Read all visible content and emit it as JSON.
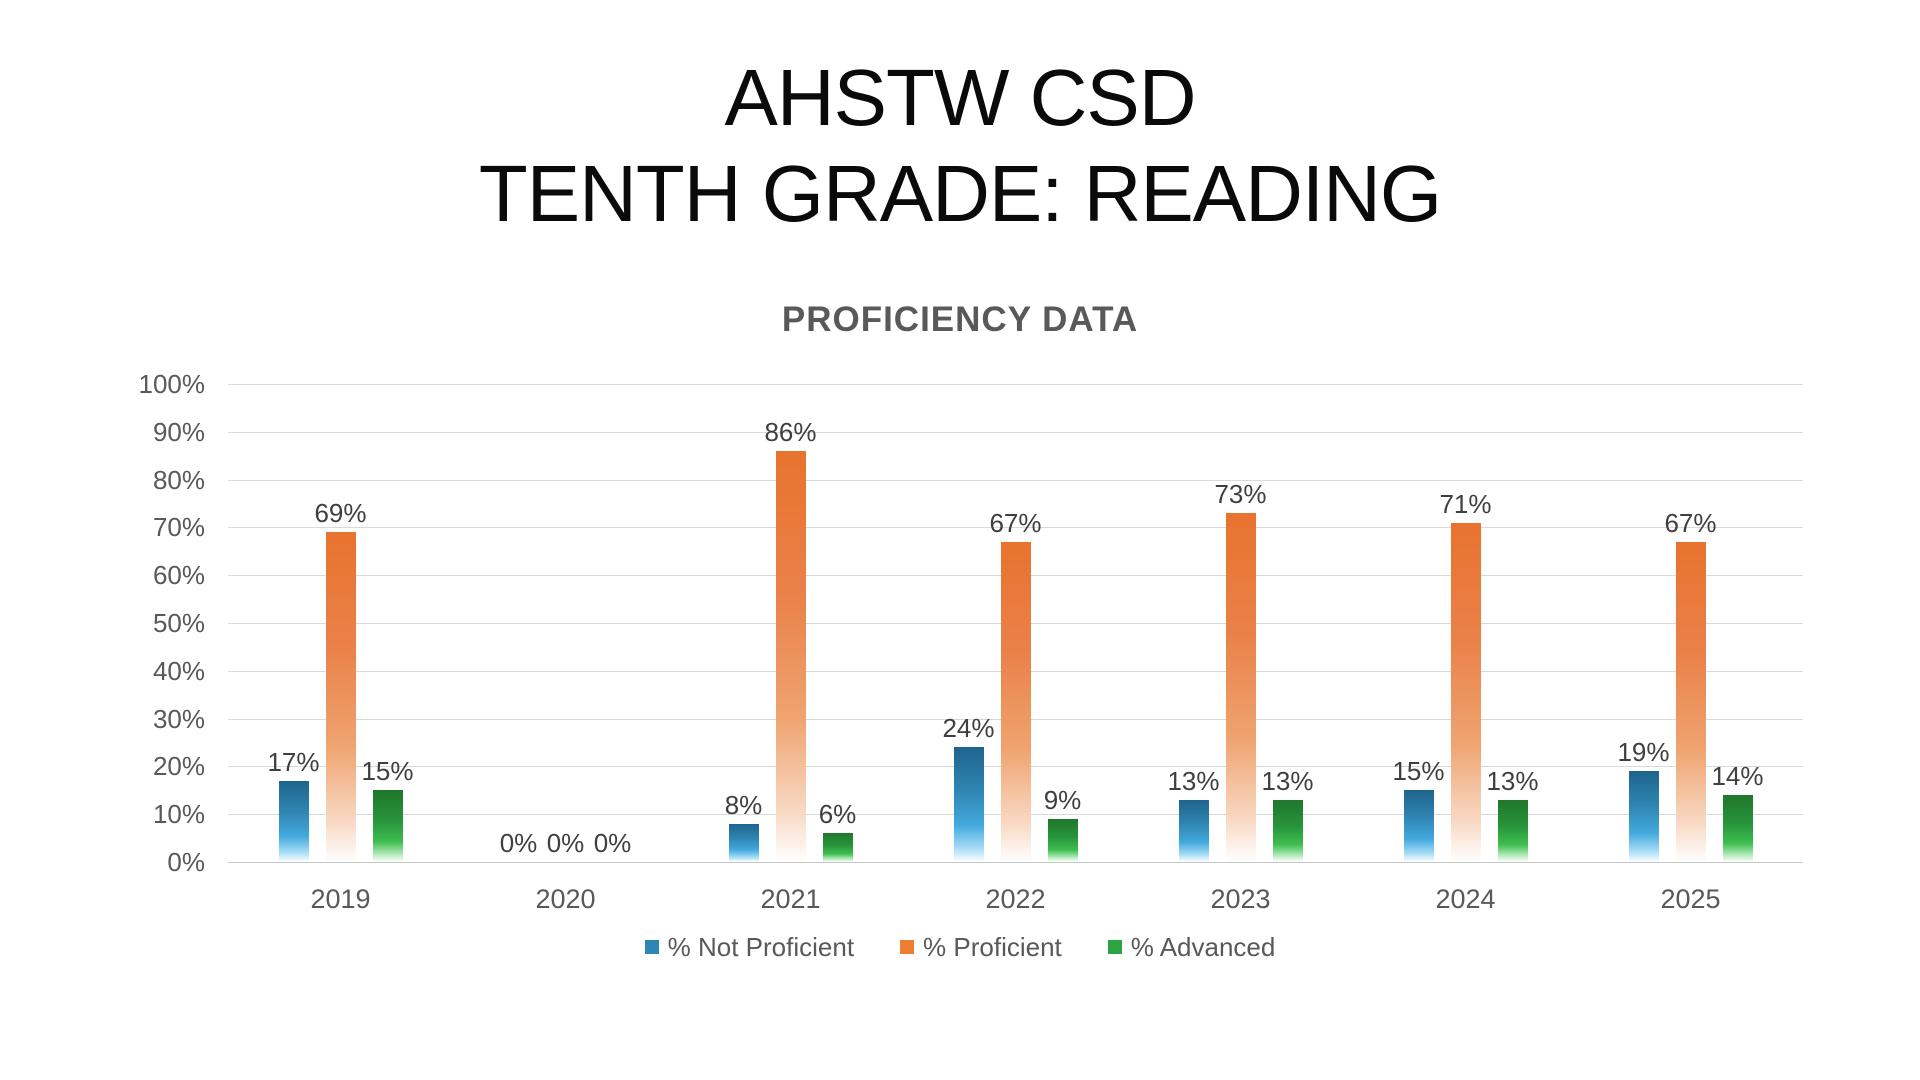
{
  "title": {
    "line1": "AHSTW CSD",
    "line2": "TENTH GRADE: READING"
  },
  "chart_data": {
    "type": "bar",
    "title": "PROFICIENCY DATA",
    "categories": [
      "2019",
      "2020",
      "2021",
      "2022",
      "2023",
      "2024",
      "2025"
    ],
    "series": [
      {
        "name": "% Not Proficient",
        "color": "#2e86b5",
        "values": [
          17,
          0,
          8,
          24,
          13,
          15,
          19
        ]
      },
      {
        "name": "% Proficient",
        "color": "#ed7d31",
        "values": [
          69,
          0,
          86,
          67,
          73,
          71,
          67
        ]
      },
      {
        "name": "% Advanced",
        "color": "#2ea344",
        "values": [
          15,
          0,
          6,
          9,
          13,
          13,
          14
        ]
      }
    ],
    "value_suffix": "%",
    "ylabel": "",
    "xlabel": "",
    "ylim": [
      0,
      100
    ],
    "y_tick_step": 10,
    "y_tick_labels": [
      "0%",
      "10%",
      "20%",
      "30%",
      "40%",
      "50%",
      "60%",
      "70%",
      "80%",
      "90%",
      "100%"
    ],
    "grid": true,
    "data_labels": true,
    "legend_position": "bottom"
  },
  "colors": {
    "title_text": "#0a0a0a",
    "subtitle_text": "#595959",
    "axis_text": "#595959",
    "data_label_text": "#3f3f3f",
    "gridline": "#d9d9d9",
    "background": "#ffffff"
  }
}
